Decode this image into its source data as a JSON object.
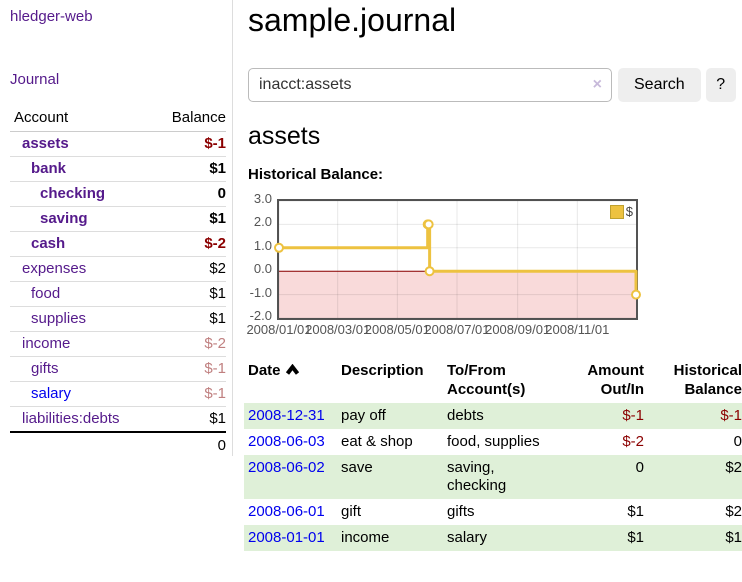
{
  "app": {
    "title": "hledger-web"
  },
  "sidebar": {
    "nav": {
      "journal": "Journal"
    },
    "table": {
      "account_header": "Account",
      "balance_header": "Balance",
      "accounts": [
        {
          "label": "assets",
          "balance": "$-1"
        },
        {
          "label": "bank",
          "balance": "$1"
        },
        {
          "label": "checking",
          "balance": "0"
        },
        {
          "label": "saving",
          "balance": "$1"
        },
        {
          "label": "cash",
          "balance": "$-2"
        },
        {
          "label": "expenses",
          "balance": "$2"
        },
        {
          "label": "food",
          "balance": "$1"
        },
        {
          "label": "supplies",
          "balance": "$1"
        },
        {
          "label": "income",
          "balance": "$-2"
        },
        {
          "label": "gifts",
          "balance": "$-1"
        },
        {
          "label": "salary",
          "balance": "$-1"
        },
        {
          "label": "liabilities:debts",
          "balance": "$1"
        }
      ],
      "total": "0"
    }
  },
  "main": {
    "title": "sample.journal",
    "search": {
      "value": "inacct:assets",
      "clear_icon": "×",
      "button": "Search",
      "help_button": "?"
    },
    "account_heading": "assets",
    "chart_label": "Historical Balance:",
    "register_table": {
      "headers": {
        "date": "Date",
        "description": "Description",
        "accounts": "To/From Account(s)",
        "amount": "Amount Out/In",
        "balance": "Historical Balance"
      },
      "rows": [
        {
          "date": "2008-12-31",
          "description": "pay off",
          "accounts": "debts",
          "amount": "$-1",
          "balance": "$-1"
        },
        {
          "date": "2008-06-03",
          "description": "eat & shop",
          "accounts": "food, supplies",
          "amount": "$-2",
          "balance": "0"
        },
        {
          "date": "2008-06-02",
          "description": "save",
          "accounts": "saving, checking",
          "amount": "0",
          "balance": "$2"
        },
        {
          "date": "2008-06-01",
          "description": "gift",
          "accounts": "gifts",
          "amount": "$1",
          "balance": "$2"
        },
        {
          "date": "2008-01-01",
          "description": "income",
          "accounts": "salary",
          "amount": "$1",
          "balance": "$1"
        }
      ]
    }
  },
  "chart_data": {
    "type": "line",
    "steps": true,
    "title": "Historical Balance:",
    "legend": {
      "position": "top-right",
      "entries": [
        {
          "label": "$",
          "color": "#edc240"
        }
      ]
    },
    "series": [
      {
        "name": "$",
        "color": "#edc240",
        "points": [
          {
            "date": "2008-01-01",
            "day": 0,
            "value": 1
          },
          {
            "date": "2008-06-01",
            "day": 152,
            "value": 2
          },
          {
            "date": "2008-06-02",
            "day": 153,
            "value": 2
          },
          {
            "date": "2008-06-03",
            "day": 154,
            "value": 0
          },
          {
            "date": "2008-12-31",
            "day": 365,
            "value": -1
          }
        ]
      }
    ],
    "x_ticks": [
      {
        "day": 0,
        "label": "2008/01/01"
      },
      {
        "day": 60,
        "label": "2008/03/01"
      },
      {
        "day": 121,
        "label": "2008/05/01"
      },
      {
        "day": 182,
        "label": "2008/07/01"
      },
      {
        "day": 244,
        "label": "2008/09/01"
      },
      {
        "day": 305,
        "label": "2008/11/01"
      }
    ],
    "y_ticks": [
      {
        "value": 3,
        "label": "3.0"
      },
      {
        "value": 2,
        "label": "2.0"
      },
      {
        "value": 1,
        "label": "1.0"
      },
      {
        "value": 0,
        "label": "0.0"
      },
      {
        "value": -1,
        "label": "-1.0"
      },
      {
        "value": -2,
        "label": "-2.0"
      }
    ],
    "ylim": [
      -2,
      3
    ],
    "xlim_days": [
      0,
      365
    ],
    "grid": true,
    "below_zero_fill": "#f9dada",
    "zero_line_color": "#8b0000"
  },
  "colors": {
    "visited_link": "#551a8b",
    "link": "#0000ee",
    "negative": "#8b0000",
    "negative_dim": "#c08080",
    "row_highlight": "#dff0d8",
    "series_gold": "#edc240"
  }
}
